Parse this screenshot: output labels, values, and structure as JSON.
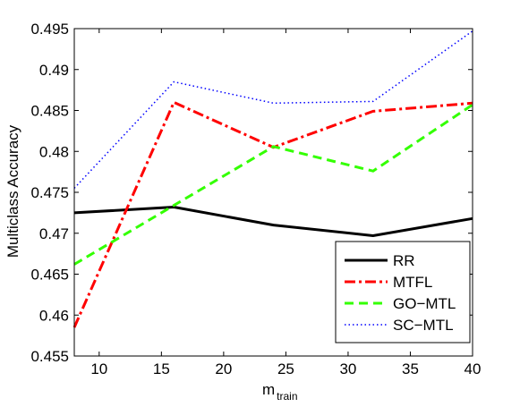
{
  "chart_data": {
    "type": "line",
    "title": "",
    "xlabel": "m",
    "xlabel_subscript": "train",
    "ylabel": "Multiclass Accuracy",
    "xlim": [
      8,
      40
    ],
    "ylim": [
      0.455,
      0.495
    ],
    "xticks": [
      10,
      15,
      20,
      25,
      30,
      35,
      40
    ],
    "yticks": [
      0.455,
      0.46,
      0.465,
      0.47,
      0.475,
      0.48,
      0.485,
      0.49,
      0.495
    ],
    "xtick_labels": [
      "10",
      "15",
      "20",
      "25",
      "30",
      "35",
      "40"
    ],
    "ytick_labels": [
      "0.455",
      "0.46",
      "0.465",
      "0.47",
      "0.475",
      "0.48",
      "0.485",
      "0.49",
      "0.495"
    ],
    "grid": false,
    "legend_position": "bottom-right",
    "x": [
      8,
      16,
      24,
      32,
      40
    ],
    "series": [
      {
        "name": "RR",
        "values": [
          0.4725,
          0.4732,
          0.471,
          0.4697,
          0.4718
        ],
        "color": "#000000",
        "style": "solid"
      },
      {
        "name": "MTFL",
        "values": [
          0.4585,
          0.486,
          0.4805,
          0.4849,
          0.4859
        ],
        "color": "#ff0000",
        "style": "dashdot"
      },
      {
        "name": "GO−MTL",
        "values": [
          0.4662,
          0.4734,
          0.4806,
          0.4776,
          0.4857
        ],
        "color": "#33ff00",
        "style": "dashed"
      },
      {
        "name": "SC−MTL",
        "values": [
          0.4755,
          0.4885,
          0.4859,
          0.4861,
          0.4947
        ],
        "color": "#0000ff",
        "style": "dotted"
      }
    ]
  }
}
